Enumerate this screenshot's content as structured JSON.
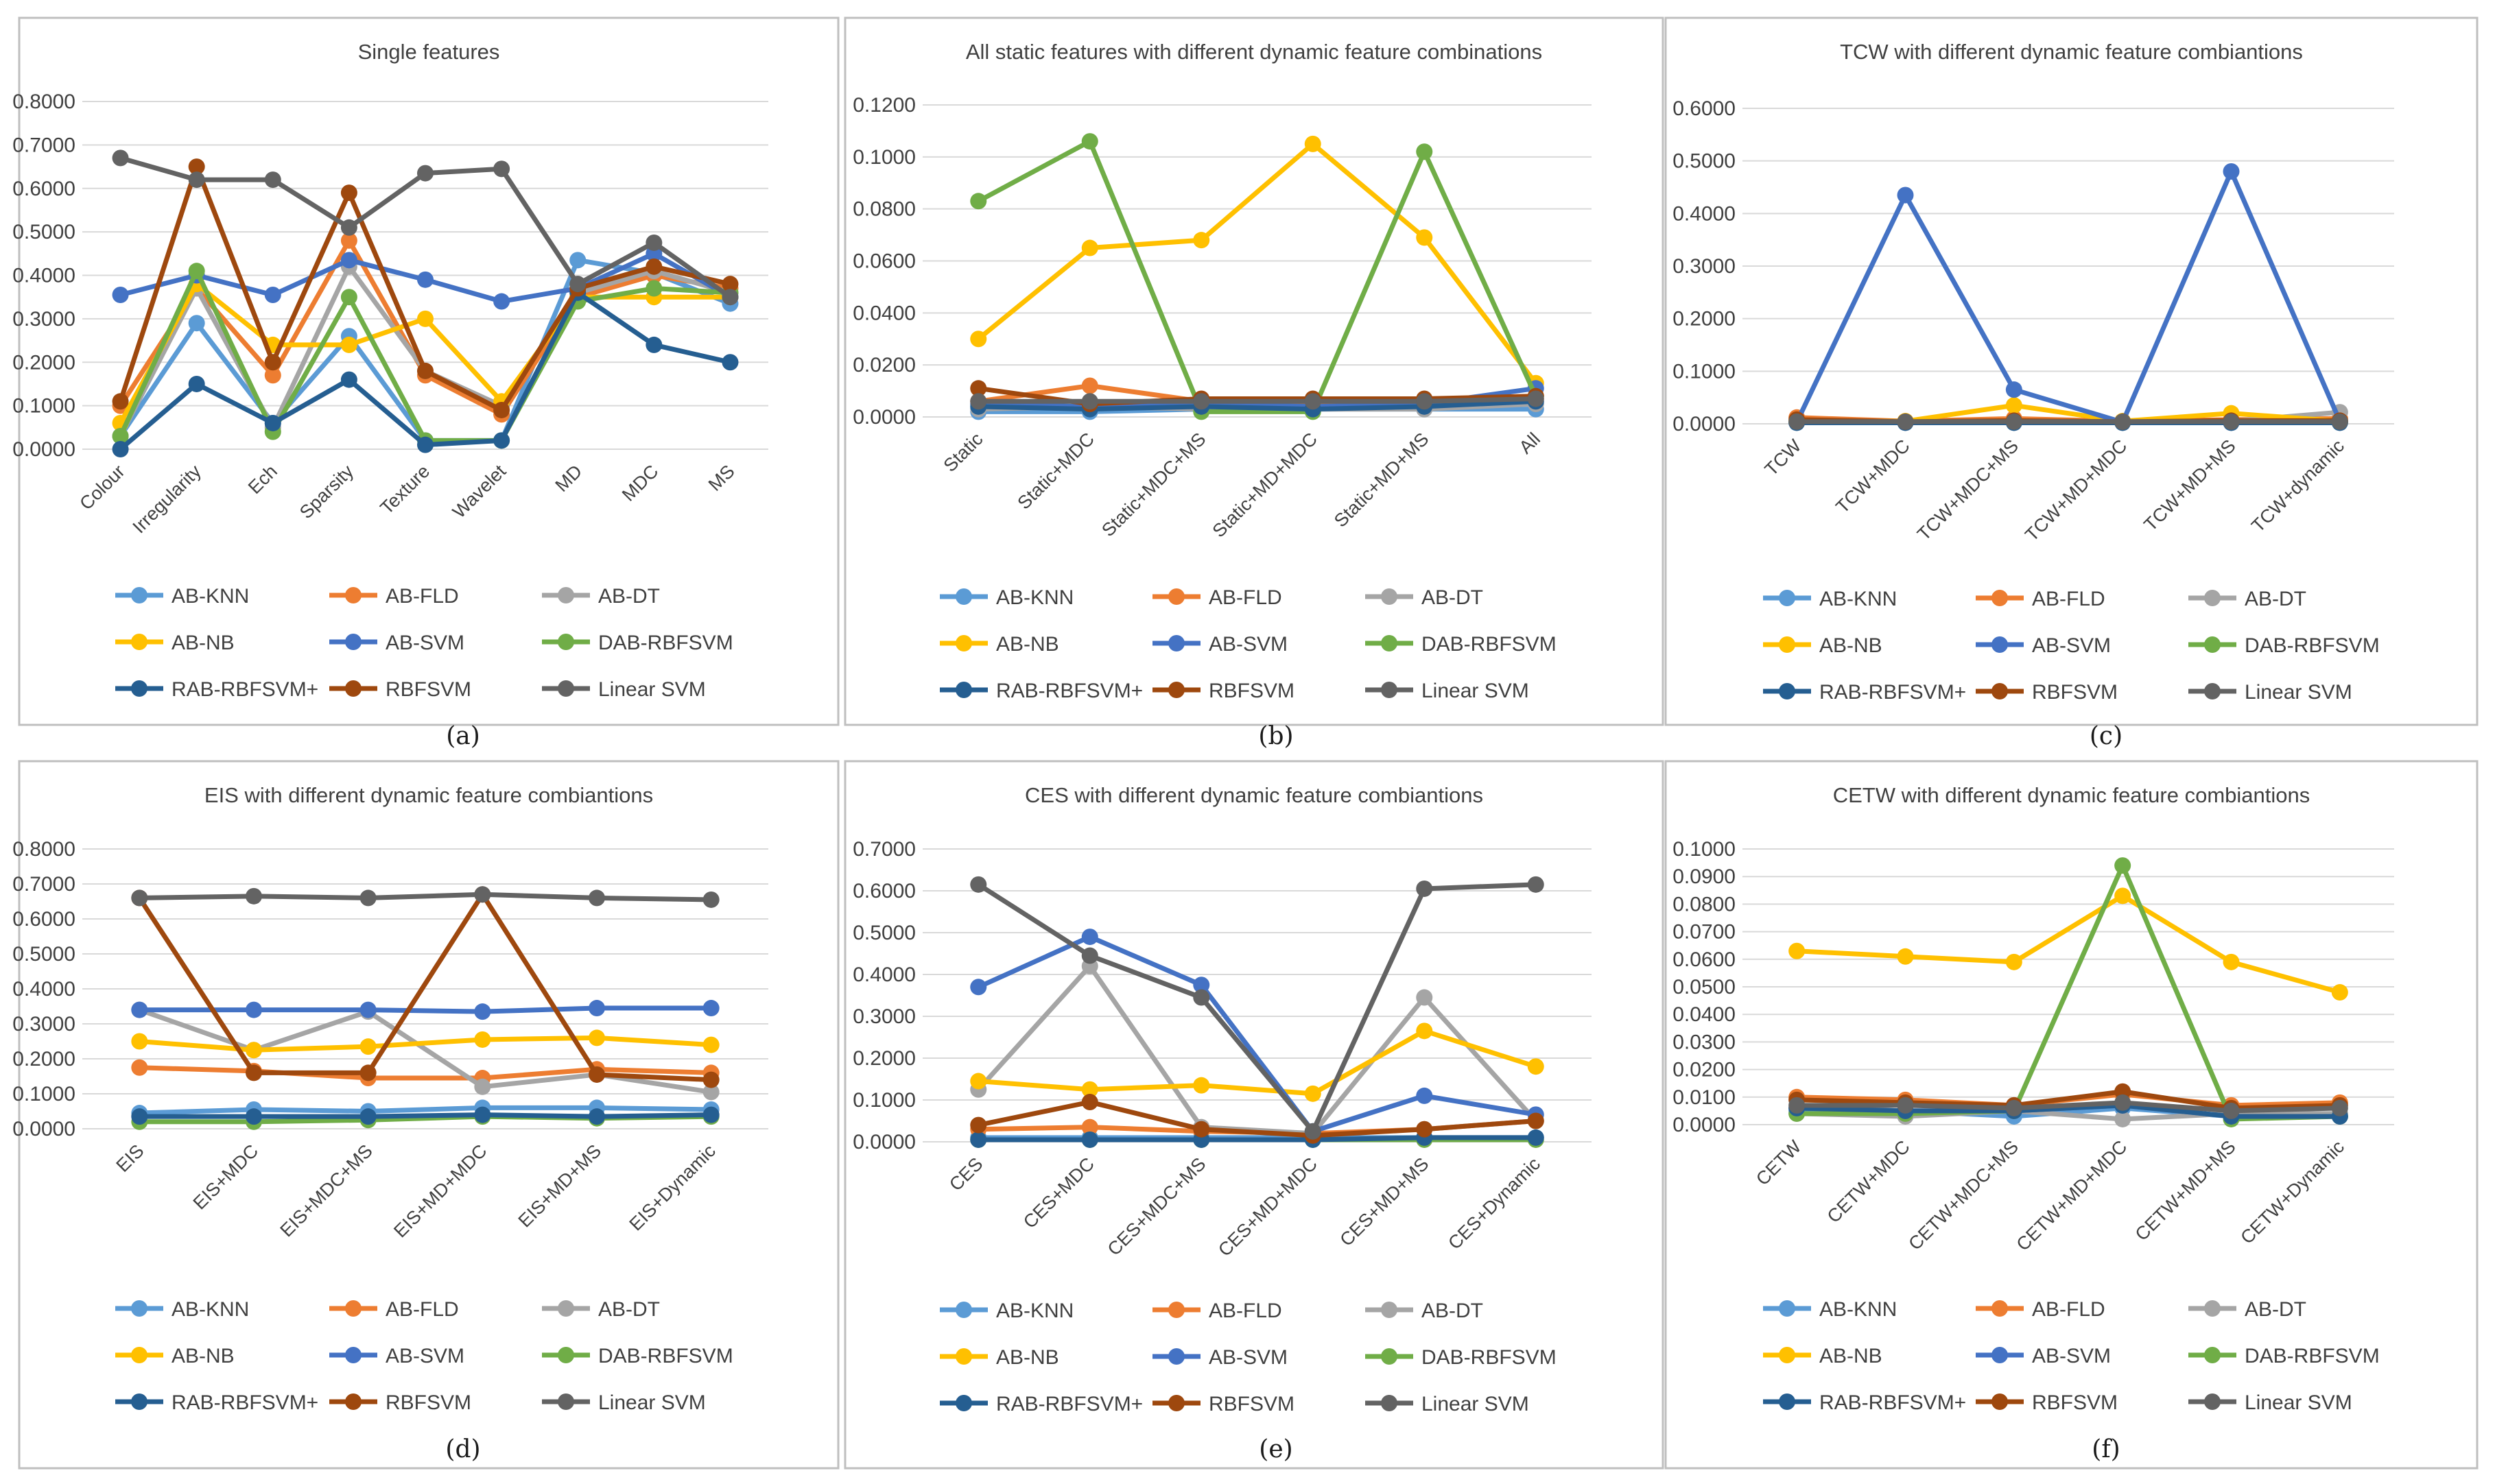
{
  "series_names": [
    "AB-KNN",
    "AB-FLD",
    "AB-DT",
    "AB-NB",
    "AB-SVM",
    "DAB-RBFSVM",
    "RAB-RBFSVM+",
    "RBFSVM",
    "Linear SVM"
  ],
  "series_colors": [
    "#5b9bd5",
    "#ed7d31",
    "#a5a5a5",
    "#ffc000",
    "#4472c4",
    "#70ad47",
    "#255e91",
    "#9e480e",
    "#636363"
  ],
  "chart_data": [
    {
      "type": "line",
      "title": "Single features",
      "label": "(a)",
      "categories": [
        "Colour",
        "Irregularity",
        "Ech",
        "Sparsity",
        "Texture",
        "Wavelet",
        "MD",
        "MDC",
        "MS"
      ],
      "ylim": [
        0,
        0.8
      ],
      "ystep": 0.1,
      "ydecimals": 4,
      "series": [
        {
          "name": "AB-KNN",
          "values": [
            0.03,
            0.29,
            0.06,
            0.26,
            0.02,
            0.02,
            0.435,
            0.405,
            0.335
          ]
        },
        {
          "name": "AB-FLD",
          "values": [
            0.1,
            0.37,
            0.17,
            0.48,
            0.17,
            0.08,
            0.35,
            0.4,
            0.37
          ]
        },
        {
          "name": "AB-DT",
          "values": [
            0.03,
            0.37,
            0.05,
            0.42,
            0.18,
            0.1,
            0.36,
            0.41,
            0.36
          ]
        },
        {
          "name": "AB-NB",
          "values": [
            0.06,
            0.38,
            0.24,
            0.24,
            0.3,
            0.11,
            0.35,
            0.35,
            0.35
          ]
        },
        {
          "name": "AB-SVM",
          "values": [
            0.355,
            0.4,
            0.355,
            0.435,
            0.39,
            0.34,
            0.37,
            0.45,
            0.35
          ]
        },
        {
          "name": "DAB-RBFSVM",
          "values": [
            0.03,
            0.41,
            0.04,
            0.35,
            0.02,
            0.02,
            0.34,
            0.37,
            0.36
          ]
        },
        {
          "name": "RAB-RBFSVM+",
          "values": [
            0.0,
            0.15,
            0.06,
            0.16,
            0.01,
            0.02,
            0.36,
            0.24,
            0.2
          ]
        },
        {
          "name": "RBFSVM",
          "values": [
            0.11,
            0.65,
            0.2,
            0.59,
            0.18,
            0.09,
            0.37,
            0.42,
            0.38
          ]
        },
        {
          "name": "Linear SVM",
          "values": [
            0.67,
            0.62,
            0.62,
            0.51,
            0.635,
            0.645,
            0.38,
            0.475,
            0.35
          ]
        }
      ]
    },
    {
      "type": "line",
      "title": "All static features with different dynamic feature combinations",
      "label": "(b)",
      "categories": [
        "Static",
        "Static+MDC",
        "Static+MDC+MS",
        "Static+MD+MDC",
        "Static+MD+MS",
        "All"
      ],
      "ylim": [
        0,
        0.12
      ],
      "ystep": 0.02,
      "ydecimals": 4,
      "series": [
        {
          "name": "AB-KNN",
          "values": [
            0.002,
            0.002,
            0.003,
            0.003,
            0.003,
            0.003
          ]
        },
        {
          "name": "AB-FLD",
          "values": [
            0.006,
            0.012,
            0.006,
            0.005,
            0.005,
            0.007
          ]
        },
        {
          "name": "AB-DT",
          "values": [
            0.003,
            0.004,
            0.003,
            0.003,
            0.003,
            0.005
          ]
        },
        {
          "name": "AB-NB",
          "values": [
            0.03,
            0.065,
            0.068,
            0.105,
            0.069,
            0.013
          ]
        },
        {
          "name": "AB-SVM",
          "values": [
            0.005,
            0.004,
            0.005,
            0.004,
            0.005,
            0.011
          ]
        },
        {
          "name": "DAB-RBFSVM",
          "values": [
            0.083,
            0.106,
            0.002,
            0.002,
            0.102,
            0.008
          ]
        },
        {
          "name": "RAB-RBFSVM+",
          "values": [
            0.004,
            0.003,
            0.004,
            0.003,
            0.004,
            0.006
          ]
        },
        {
          "name": "RBFSVM",
          "values": [
            0.011,
            0.005,
            0.007,
            0.007,
            0.007,
            0.008
          ]
        },
        {
          "name": "Linear SVM",
          "values": [
            0.006,
            0.006,
            0.006,
            0.006,
            0.006,
            0.007
          ]
        }
      ]
    },
    {
      "type": "line",
      "title": "TCW with different dynamic feature combiantions",
      "label": "(c)",
      "categories": [
        "TCW",
        "TCW+MDC",
        "TCW+MDC+MS",
        "TCW+MD+MDC",
        "TCW+MD+MS",
        "TCW+dynamic"
      ],
      "ylim": [
        0,
        0.6
      ],
      "ystep": 0.1,
      "ydecimals": 4,
      "series": [
        {
          "name": "AB-KNN",
          "values": [
            0.003,
            0.003,
            0.003,
            0.003,
            0.003,
            0.003
          ]
        },
        {
          "name": "AB-FLD",
          "values": [
            0.012,
            0.005,
            0.01,
            0.005,
            0.008,
            0.01
          ]
        },
        {
          "name": "AB-DT",
          "values": [
            0.004,
            0.004,
            0.005,
            0.004,
            0.005,
            0.022
          ]
        },
        {
          "name": "AB-NB",
          "values": [
            0.005,
            0.005,
            0.035,
            0.005,
            0.02,
            0.005
          ]
        },
        {
          "name": "AB-SVM",
          "values": [
            0.003,
            0.435,
            0.065,
            0.003,
            0.48,
            0.005
          ]
        },
        {
          "name": "DAB-RBFSVM",
          "values": [
            0.003,
            0.003,
            0.003,
            0.003,
            0.003,
            0.003
          ]
        },
        {
          "name": "RAB-RBFSVM+",
          "values": [
            0.002,
            0.002,
            0.002,
            0.002,
            0.002,
            0.002
          ]
        },
        {
          "name": "RBFSVM",
          "values": [
            0.008,
            0.004,
            0.006,
            0.004,
            0.006,
            0.006
          ]
        },
        {
          "name": "Linear SVM",
          "values": [
            0.004,
            0.004,
            0.004,
            0.004,
            0.004,
            0.004
          ]
        }
      ]
    },
    {
      "type": "line",
      "title": "EIS with different dynamic feature combiantions",
      "label": "(d)",
      "categories": [
        "EIS",
        "EIS+MDC",
        "EIS+MDC+MS",
        "EIS+MD+MDC",
        "EIS+MD+MS",
        "EIS+Dynamic"
      ],
      "ylim": [
        0,
        0.8
      ],
      "ystep": 0.1,
      "ydecimals": 4,
      "series": [
        {
          "name": "AB-KNN",
          "values": [
            0.045,
            0.055,
            0.05,
            0.06,
            0.06,
            0.055
          ]
        },
        {
          "name": "AB-FLD",
          "values": [
            0.175,
            0.165,
            0.145,
            0.145,
            0.17,
            0.16
          ]
        },
        {
          "name": "AB-DT",
          "values": [
            0.34,
            0.225,
            0.335,
            0.12,
            0.155,
            0.105
          ]
        },
        {
          "name": "AB-NB",
          "values": [
            0.25,
            0.225,
            0.235,
            0.255,
            0.26,
            0.24
          ]
        },
        {
          "name": "AB-SVM",
          "values": [
            0.34,
            0.34,
            0.34,
            0.335,
            0.345,
            0.345
          ]
        },
        {
          "name": "DAB-RBFSVM",
          "values": [
            0.02,
            0.02,
            0.025,
            0.035,
            0.03,
            0.035
          ]
        },
        {
          "name": "RAB-RBFSVM+",
          "values": [
            0.035,
            0.035,
            0.035,
            0.04,
            0.035,
            0.04
          ]
        },
        {
          "name": "RBFSVM",
          "values": [
            0.66,
            0.16,
            0.16,
            0.67,
            0.155,
            0.14
          ]
        },
        {
          "name": "Linear SVM",
          "values": [
            0.66,
            0.665,
            0.66,
            0.67,
            0.66,
            0.655
          ]
        }
      ]
    },
    {
      "type": "line",
      "title": "CES with different dynamic feature combiantions",
      "label": "(e)",
      "categories": [
        "CES",
        "CES+MDC",
        "CES+MDC+MS",
        "CES+MD+MDC",
        "CES+MD+MS",
        "CES+Dynamic"
      ],
      "ylim": [
        0,
        0.7
      ],
      "ystep": 0.1,
      "ydecimals": 4,
      "series": [
        {
          "name": "AB-KNN",
          "values": [
            0.01,
            0.01,
            0.01,
            0.01,
            0.01,
            0.01
          ]
        },
        {
          "name": "AB-FLD",
          "values": [
            0.03,
            0.035,
            0.025,
            0.02,
            0.03,
            0.05
          ]
        },
        {
          "name": "AB-DT",
          "values": [
            0.125,
            0.42,
            0.035,
            0.02,
            0.345,
            0.05
          ]
        },
        {
          "name": "AB-NB",
          "values": [
            0.145,
            0.125,
            0.135,
            0.115,
            0.265,
            0.18
          ]
        },
        {
          "name": "AB-SVM",
          "values": [
            0.37,
            0.49,
            0.375,
            0.025,
            0.11,
            0.065
          ]
        },
        {
          "name": "DAB-RBFSVM",
          "values": [
            0.005,
            0.005,
            0.005,
            0.005,
            0.005,
            0.005
          ]
        },
        {
          "name": "RAB-RBFSVM+",
          "values": [
            0.005,
            0.005,
            0.005,
            0.005,
            0.01,
            0.01
          ]
        },
        {
          "name": "RBFSVM",
          "values": [
            0.04,
            0.095,
            0.03,
            0.015,
            0.03,
            0.05
          ]
        },
        {
          "name": "Linear SVM",
          "values": [
            0.615,
            0.445,
            0.345,
            0.025,
            0.605,
            0.615
          ]
        }
      ]
    },
    {
      "type": "line",
      "title": "CETW with different dynamic feature combiantions",
      "label": "(f)",
      "categories": [
        "CETW",
        "CETW+MDC",
        "CETW+MDC+MS",
        "CETW+MD+MDC",
        "CETW+MD+MS",
        "CETW+Dynamic"
      ],
      "ylim": [
        0,
        0.1
      ],
      "ystep": 0.01,
      "ydecimals": 4,
      "series": [
        {
          "name": "AB-KNN",
          "values": [
            0.005,
            0.005,
            0.003,
            0.006,
            0.003,
            0.003
          ]
        },
        {
          "name": "AB-FLD",
          "values": [
            0.01,
            0.009,
            0.007,
            0.011,
            0.007,
            0.008
          ]
        },
        {
          "name": "AB-DT",
          "values": [
            0.004,
            0.003,
            0.005,
            0.002,
            0.004,
            0.004
          ]
        },
        {
          "name": "AB-NB",
          "values": [
            0.063,
            0.061,
            0.059,
            0.083,
            0.059,
            0.048
          ]
        },
        {
          "name": "AB-SVM",
          "values": [
            0.006,
            0.005,
            0.005,
            0.007,
            0.003,
            0.003
          ]
        },
        {
          "name": "DAB-RBFSVM",
          "values": [
            0.004,
            0.004,
            0.005,
            0.094,
            0.002,
            0.003
          ]
        },
        {
          "name": "RAB-RBFSVM+",
          "values": [
            0.006,
            0.005,
            0.005,
            0.007,
            0.003,
            0.003
          ]
        },
        {
          "name": "RBFSVM",
          "values": [
            0.009,
            0.008,
            0.007,
            0.012,
            0.006,
            0.007
          ]
        },
        {
          "name": "Linear SVM",
          "values": [
            0.007,
            0.007,
            0.006,
            0.008,
            0.005,
            0.006
          ]
        }
      ]
    }
  ]
}
